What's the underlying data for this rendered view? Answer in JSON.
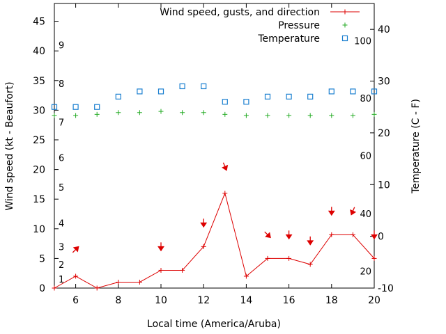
{
  "chart_data": {
    "type": "line",
    "xlabel": "Local time (America/Aruba)",
    "ylabel_left": "Wind speed (kt - Beaufort)",
    "ylabel_right": "Temperature (C - F)",
    "x_ticks": [
      6,
      8,
      10,
      12,
      14,
      16,
      18,
      20
    ],
    "y_left_ticks": [
      0,
      5,
      10,
      15,
      20,
      25,
      30,
      35,
      40,
      45
    ],
    "y_right_ticks": [
      -10,
      0,
      10,
      20,
      30,
      40
    ],
    "xlim": [
      5,
      20
    ],
    "ylim_left": [
      0,
      48
    ],
    "ylim_right": [
      -10,
      45
    ],
    "beaufort_scale": [
      {
        "label": "1",
        "kt": 1.5
      },
      {
        "label": "2",
        "kt": 4
      },
      {
        "label": "3",
        "kt": 7
      },
      {
        "label": "4",
        "kt": 11
      },
      {
        "label": "5",
        "kt": 17
      },
      {
        "label": "6",
        "kt": 22
      },
      {
        "label": "7",
        "kt": 28
      },
      {
        "label": "8",
        "kt": 34.5
      },
      {
        "label": "9",
        "kt": 41
      }
    ],
    "fahrenheit_scale": [
      {
        "label": "20",
        "celsius": -6.7
      },
      {
        "label": "40",
        "celsius": 4.4
      },
      {
        "label": "60",
        "celsius": 15.6
      },
      {
        "label": "80",
        "celsius": 26.7
      },
      {
        "label": "100",
        "celsius": 37.8
      }
    ],
    "legend_position": "top-right",
    "series": [
      {
        "name": "Wind speed, gusts, and direction",
        "color": "#dd0000",
        "marker": "plus",
        "axis": "left",
        "x": [
          5,
          6,
          7,
          8,
          9,
          10,
          11,
          12,
          13,
          14,
          15,
          16,
          17,
          18,
          19,
          20
        ],
        "y": [
          0,
          2,
          0,
          1,
          1,
          3,
          3,
          7,
          16,
          2,
          5,
          5,
          4,
          9,
          9,
          5
        ]
      },
      {
        "name": "Pressure",
        "color": "#22aa22",
        "marker": "plus",
        "axis": "left",
        "x": [
          5,
          6,
          7,
          8,
          9,
          10,
          11,
          12,
          13,
          14,
          15,
          16,
          17,
          18,
          19,
          20
        ],
        "y": [
          29.1,
          29.1,
          29.3,
          29.6,
          29.6,
          29.8,
          29.6,
          29.6,
          29.3,
          29.1,
          29.1,
          29.1,
          29.1,
          29.1,
          29.1,
          29.3
        ]
      },
      {
        "name": "Temperature",
        "color": "#1a7fd0",
        "marker": "square",
        "axis": "right",
        "x": [
          5,
          6,
          7,
          8,
          9,
          10,
          11,
          12,
          13,
          14,
          15,
          16,
          17,
          18,
          19,
          20
        ],
        "y": [
          25,
          25,
          25,
          27,
          28,
          28,
          29,
          29,
          26,
          26,
          27,
          27,
          27,
          28,
          28,
          28
        ]
      }
    ],
    "wind_direction_arrows": [
      {
        "x": 6,
        "kt": 6.5,
        "direction": "northeast"
      },
      {
        "x": 10,
        "kt": 7,
        "direction": "south"
      },
      {
        "x": 12,
        "kt": 11,
        "direction": "south"
      },
      {
        "x": 13,
        "kt": 20.5,
        "direction": "south-southeast"
      },
      {
        "x": 15,
        "kt": 9,
        "direction": "southeast"
      },
      {
        "x": 16,
        "kt": 9,
        "direction": "south"
      },
      {
        "x": 17,
        "kt": 8,
        "direction": "south"
      },
      {
        "x": 18,
        "kt": 13,
        "direction": "south"
      },
      {
        "x": 19,
        "kt": 13,
        "direction": "south-southwest"
      },
      {
        "x": 20,
        "kt": 9,
        "direction": "south"
      }
    ],
    "arrow_color": "#dd0000"
  }
}
